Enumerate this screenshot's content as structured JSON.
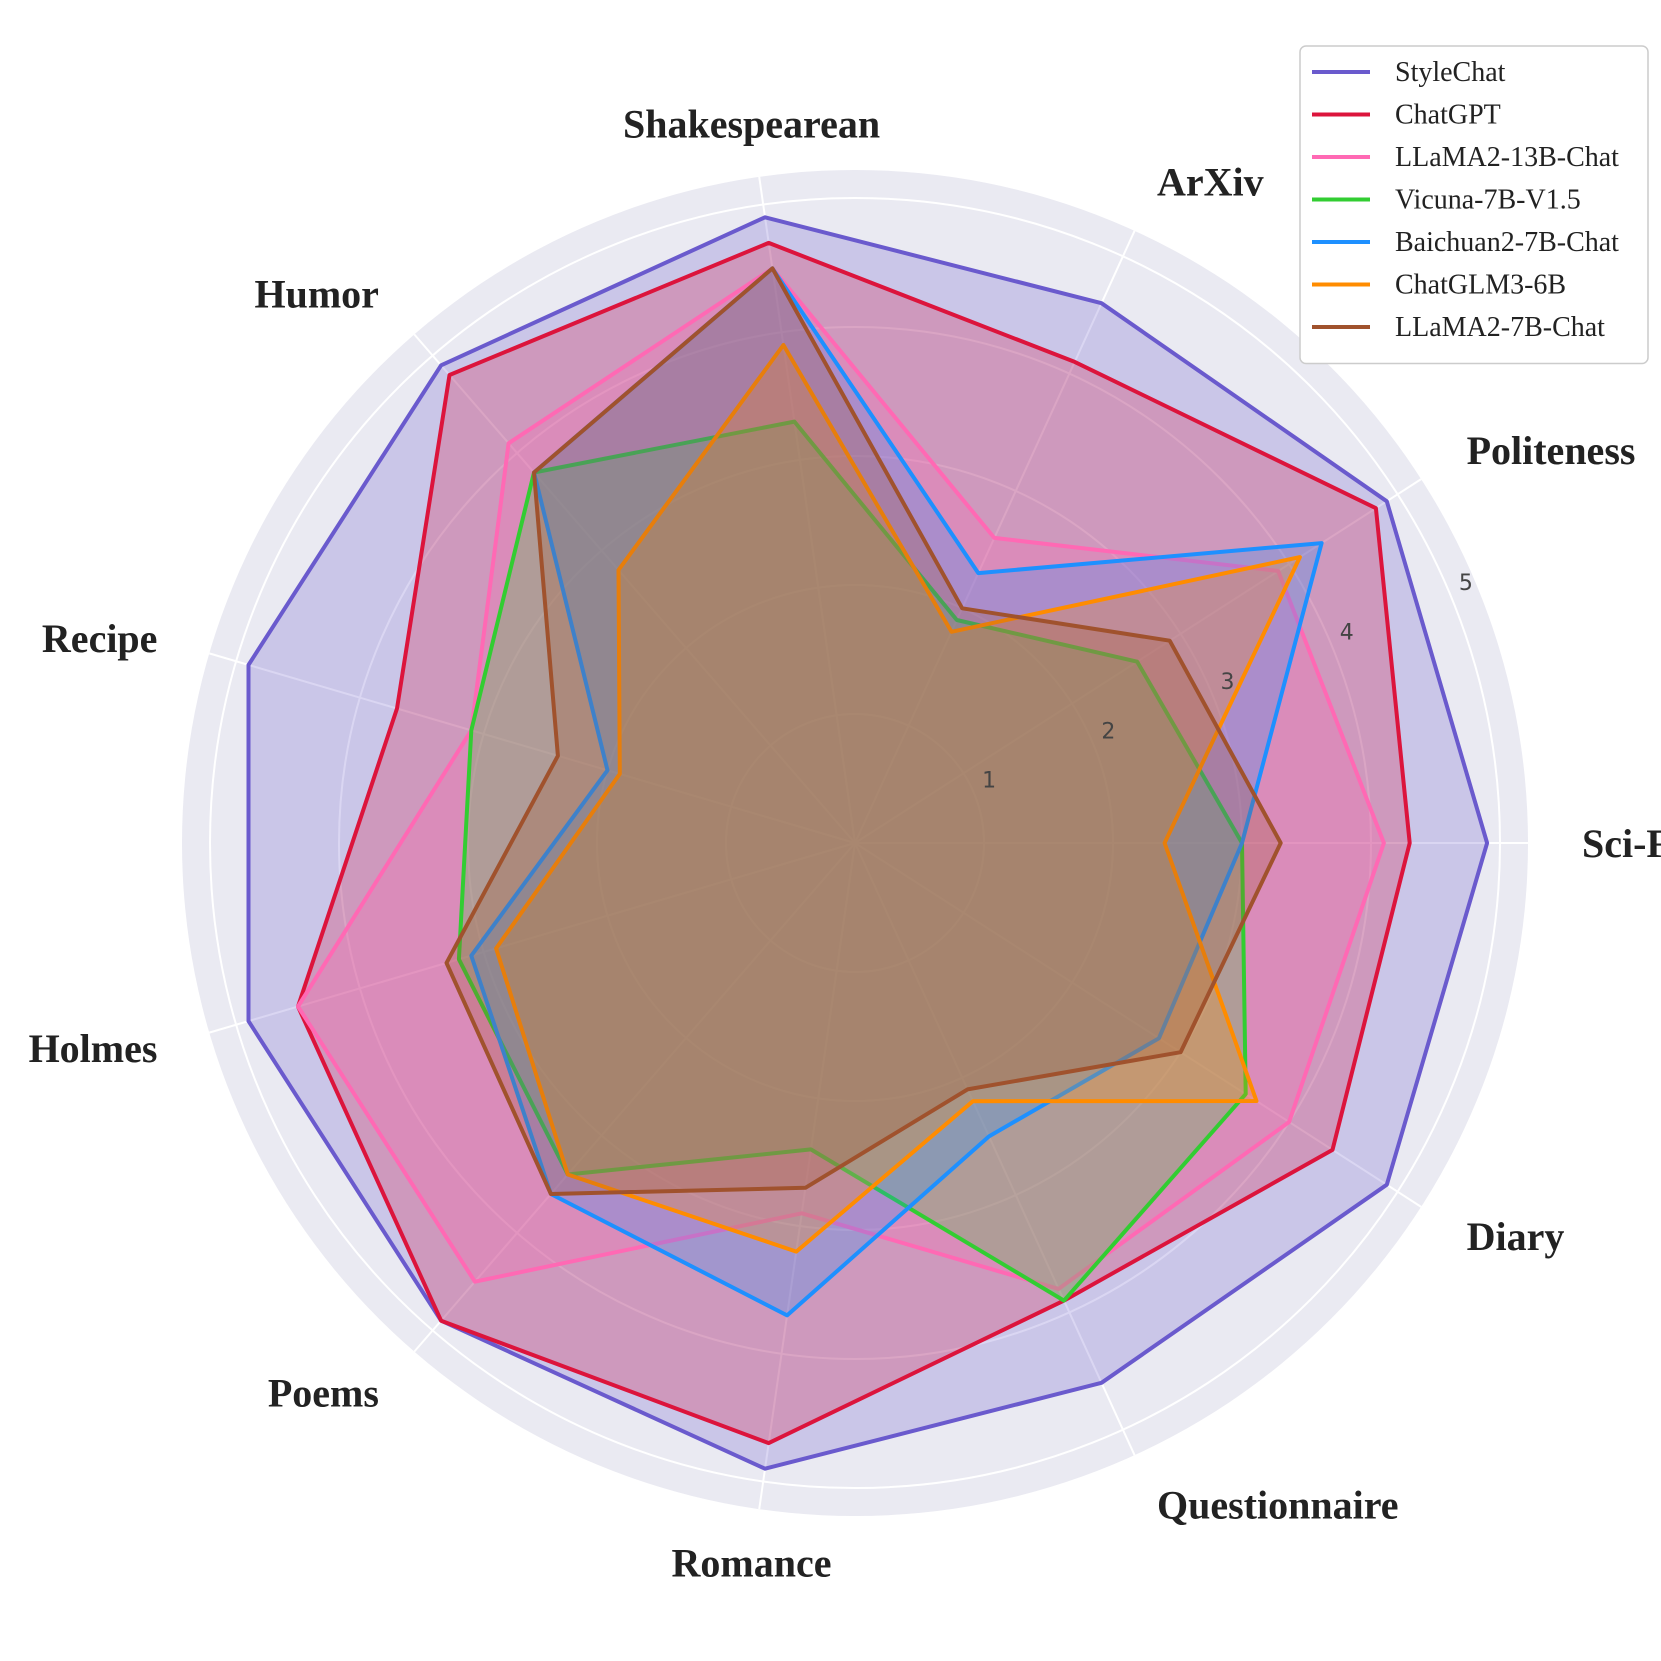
{
  "chart_data": {
    "type": "radar",
    "categories": [
      "Sci-Fi",
      "Politeness",
      "ArXiv",
      "Shakespearean",
      "Humor",
      "Recipe",
      "Holmes",
      "Poems",
      "Romance",
      "Questionnaire",
      "Diary"
    ],
    "rlim": [
      0,
      5
    ],
    "radial_ticks": [
      "1",
      "2",
      "3",
      "4",
      "5"
    ],
    "grid": true,
    "legend_position": "top-right",
    "series": [
      {
        "name": "StyleChat",
        "color": "#6a5acd",
        "values": [
          4.9,
          4.9,
          4.6,
          4.9,
          4.9,
          4.9,
          4.9,
          4.9,
          4.9,
          4.6,
          4.9
        ]
      },
      {
        "name": "ChatGPT",
        "color": "#dc143c",
        "values": [
          4.3,
          4.8,
          4.1,
          4.7,
          4.8,
          3.7,
          4.5,
          4.9,
          4.7,
          3.9,
          4.4
        ]
      },
      {
        "name": "LLaMA2-13B-Chat",
        "color": "#ff69b4",
        "values": [
          4.1,
          3.9,
          2.6,
          4.5,
          4.1,
          3.1,
          4.5,
          4.5,
          2.9,
          3.8,
          4.0
        ]
      },
      {
        "name": "Vicuna-7B-V1.5",
        "color": "#32cd32",
        "values": [
          3.0,
          2.6,
          1.9,
          3.3,
          3.8,
          3.1,
          3.2,
          3.4,
          2.4,
          3.9,
          3.6
        ]
      },
      {
        "name": "Baichuan2-7B-Chat",
        "color": "#1e90ff",
        "values": [
          3.0,
          4.3,
          2.3,
          4.5,
          3.8,
          2.0,
          3.1,
          3.6,
          3.7,
          2.5,
          2.8
        ]
      },
      {
        "name": "ChatGLM3-6B",
        "color": "#ff8c00",
        "values": [
          2.4,
          4.1,
          1.8,
          3.9,
          2.8,
          1.9,
          2.9,
          3.4,
          3.2,
          2.2,
          3.7
        ]
      },
      {
        "name": "LLaMA2-7B-Chat",
        "color": "#a0522d",
        "values": [
          3.3,
          2.9,
          2.0,
          4.5,
          3.8,
          2.4,
          3.3,
          3.6,
          2.7,
          2.1,
          3.0
        ]
      }
    ]
  }
}
